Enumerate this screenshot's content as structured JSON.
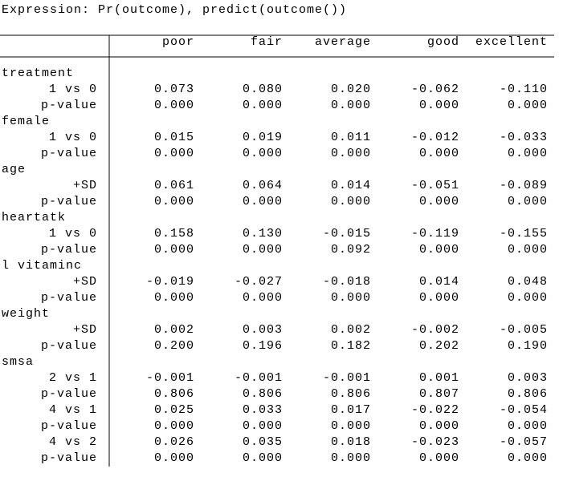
{
  "expression": "Expression: Pr(outcome), predict(outcome())",
  "table": {
    "columns": [
      "poor",
      "fair",
      "average",
      "good",
      "excellent"
    ],
    "groups": [
      {
        "name": "treatment",
        "rows": [
          {
            "label": "1 vs 0",
            "values": [
              "0.073",
              "0.080",
              "0.020",
              "-0.062",
              "-0.110"
            ]
          },
          {
            "label": "p-value",
            "values": [
              "0.000",
              "0.000",
              "0.000",
              "0.000",
              "0.000"
            ]
          }
        ]
      },
      {
        "name": "female",
        "rows": [
          {
            "label": "1 vs 0",
            "values": [
              "0.015",
              "0.019",
              "0.011",
              "-0.012",
              "-0.033"
            ]
          },
          {
            "label": "p-value",
            "values": [
              "0.000",
              "0.000",
              "0.000",
              "0.000",
              "0.000"
            ]
          }
        ]
      },
      {
        "name": "age",
        "rows": [
          {
            "label": "+SD",
            "values": [
              "0.061",
              "0.064",
              "0.014",
              "-0.051",
              "-0.089"
            ]
          },
          {
            "label": "p-value",
            "values": [
              "0.000",
              "0.000",
              "0.000",
              "0.000",
              "0.000"
            ]
          }
        ]
      },
      {
        "name": "heartatk",
        "rows": [
          {
            "label": "1 vs 0",
            "values": [
              "0.158",
              "0.130",
              "-0.015",
              "-0.119",
              "-0.155"
            ]
          },
          {
            "label": "p-value",
            "values": [
              "0.000",
              "0.000",
              "0.092",
              "0.000",
              "0.000"
            ]
          }
        ]
      },
      {
        "name": "l vitaminc",
        "rows": [
          {
            "label": "+SD",
            "values": [
              "-0.019",
              "-0.027",
              "-0.018",
              "0.014",
              "0.048"
            ]
          },
          {
            "label": "p-value",
            "values": [
              "0.000",
              "0.000",
              "0.000",
              "0.000",
              "0.000"
            ]
          }
        ]
      },
      {
        "name": "weight",
        "rows": [
          {
            "label": "+SD",
            "values": [
              "0.002",
              "0.003",
              "0.002",
              "-0.002",
              "-0.005"
            ]
          },
          {
            "label": "p-value",
            "values": [
              "0.200",
              "0.196",
              "0.182",
              "0.202",
              "0.190"
            ]
          }
        ]
      },
      {
        "name": "smsa",
        "rows": [
          {
            "label": "2 vs 1",
            "values": [
              "-0.001",
              "-0.001",
              "-0.001",
              "0.001",
              "0.003"
            ]
          },
          {
            "label": "p-value",
            "values": [
              "0.806",
              "0.806",
              "0.806",
              "0.807",
              "0.806"
            ]
          },
          {
            "label": "4 vs 1",
            "values": [
              "0.025",
              "0.033",
              "0.017",
              "-0.022",
              "-0.054"
            ]
          },
          {
            "label": "p-value",
            "values": [
              "0.000",
              "0.000",
              "0.000",
              "0.000",
              "0.000"
            ]
          },
          {
            "label": "4 vs 2",
            "values": [
              "0.026",
              "0.035",
              "0.018",
              "-0.023",
              "-0.057"
            ]
          },
          {
            "label": "p-value",
            "values": [
              "0.000",
              "0.000",
              "0.000",
              "0.000",
              "0.000"
            ]
          }
        ]
      }
    ]
  }
}
